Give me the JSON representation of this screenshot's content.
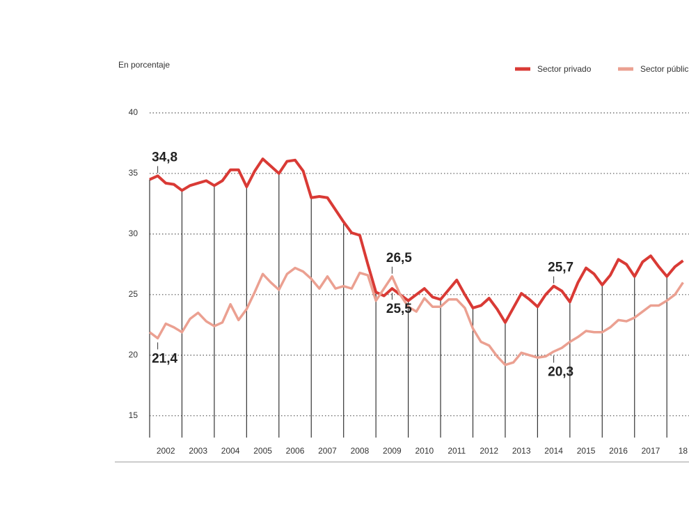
{
  "chart_data": {
    "type": "line",
    "y_axis_label": "En porcentaje",
    "x": [
      2002,
      2002.25,
      2002.5,
      2002.75,
      2003,
      2003.25,
      2003.5,
      2003.75,
      2004,
      2004.25,
      2004.5,
      2004.75,
      2005,
      2005.25,
      2005.5,
      2005.75,
      2006,
      2006.25,
      2006.5,
      2006.75,
      2007,
      2007.25,
      2007.5,
      2007.75,
      2008,
      2008.25,
      2008.5,
      2008.75,
      2009,
      2009.25,
      2009.5,
      2009.75,
      2010,
      2010.25,
      2010.5,
      2010.75,
      2011,
      2011.25,
      2011.5,
      2011.75,
      2012,
      2012.25,
      2012.5,
      2012.75,
      2013,
      2013.25,
      2013.5,
      2013.75,
      2014,
      2014.25,
      2014.5,
      2014.75,
      2015,
      2015.25,
      2015.5,
      2015.75,
      2016,
      2016.25,
      2016.5,
      2016.75,
      2017,
      2017.25,
      2017.5,
      2017.75,
      2018,
      2018.25,
      2018.5
    ],
    "series": [
      {
        "name": "Sector privado",
        "color": "#d93a35",
        "values": [
          34.5,
          34.8,
          34.2,
          34.1,
          33.6,
          34.0,
          34.2,
          34.4,
          34.0,
          34.4,
          35.3,
          35.3,
          33.9,
          35.2,
          36.2,
          35.6,
          35.0,
          36.0,
          36.1,
          35.2,
          33.0,
          33.1,
          33.0,
          32.0,
          31.0,
          30.1,
          29.9,
          27.5,
          25.2,
          24.9,
          25.5,
          25.0,
          24.5,
          25.0,
          25.5,
          24.8,
          24.6,
          25.4,
          26.2,
          25.0,
          23.9,
          24.1,
          24.7,
          23.8,
          22.7,
          23.9,
          25.1,
          24.6,
          24.0,
          25.0,
          25.7,
          25.3,
          24.4,
          26.0,
          27.2,
          26.7,
          25.8,
          26.6,
          27.9,
          27.5,
          26.5,
          27.7,
          28.2,
          27.3,
          26.5,
          27.3,
          27.8
        ],
        "value_labels": [
          null,
          "34,8",
          null,
          null,
          null,
          null,
          null,
          null,
          null,
          null,
          null,
          null,
          null,
          null,
          null,
          null,
          null,
          null,
          null,
          null,
          null,
          null,
          null,
          null,
          null,
          null,
          null,
          null,
          null,
          null,
          "25,5",
          null,
          null,
          null,
          null,
          null,
          null,
          null,
          null,
          null,
          null,
          null,
          null,
          null,
          null,
          null,
          null,
          null,
          null,
          null,
          "25,7",
          null,
          null,
          null,
          null,
          null,
          null,
          null,
          null,
          null,
          null,
          null,
          null,
          null,
          null,
          null,
          null
        ]
      },
      {
        "name": "Sector públic",
        "color": "#eba091",
        "values": [
          21.9,
          21.4,
          22.6,
          22.3,
          21.9,
          23.0,
          23.5,
          22.8,
          22.4,
          22.7,
          24.2,
          22.9,
          23.8,
          25.2,
          26.7,
          26.0,
          25.4,
          26.7,
          27.2,
          26.9,
          26.3,
          25.5,
          26.5,
          25.5,
          25.7,
          25.5,
          26.8,
          26.6,
          24.5,
          25.5,
          26.5,
          25.0,
          24.0,
          23.6,
          24.7,
          24.0,
          24.0,
          24.6,
          24.6,
          23.9,
          22.2,
          21.1,
          20.8,
          19.9,
          19.2,
          19.4,
          20.2,
          20.0,
          19.8,
          19.9,
          20.3,
          20.6,
          21.1,
          21.5,
          22.0,
          21.9,
          21.9,
          22.3,
          22.9,
          22.8,
          23.1,
          23.6,
          24.1,
          24.1,
          24.5,
          25.0,
          26.0
        ],
        "value_labels": [
          null,
          "21,4",
          null,
          null,
          null,
          null,
          null,
          null,
          null,
          null,
          null,
          null,
          null,
          null,
          null,
          null,
          null,
          null,
          null,
          null,
          null,
          null,
          null,
          null,
          null,
          null,
          null,
          null,
          null,
          null,
          "26,5",
          null,
          null,
          null,
          null,
          null,
          null,
          null,
          null,
          null,
          null,
          null,
          null,
          null,
          null,
          null,
          null,
          null,
          null,
          null,
          "20,3",
          null,
          null,
          null,
          null,
          null,
          null,
          null,
          null,
          null,
          null,
          null,
          null,
          null,
          null,
          null,
          null
        ]
      }
    ],
    "xlim": [
      2002,
      2018.7
    ],
    "xticks": [
      2002,
      2003,
      2004,
      2005,
      2006,
      2007,
      2008,
      2009,
      2010,
      2011,
      2012,
      2013,
      2014,
      2015,
      2016,
      2017,
      2018
    ],
    "year_labels": [
      "2002",
      "2003",
      "2004",
      "2005",
      "2006",
      "2007",
      "2008",
      "2009",
      "2010",
      "2011",
      "2012",
      "2013",
      "2014",
      "2015",
      "2016",
      "2017",
      "18"
    ],
    "ylim": [
      13.2,
      40
    ],
    "yticks": [
      15,
      20,
      25,
      30,
      35,
      40
    ],
    "grid": true,
    "legend": "top-right"
  }
}
